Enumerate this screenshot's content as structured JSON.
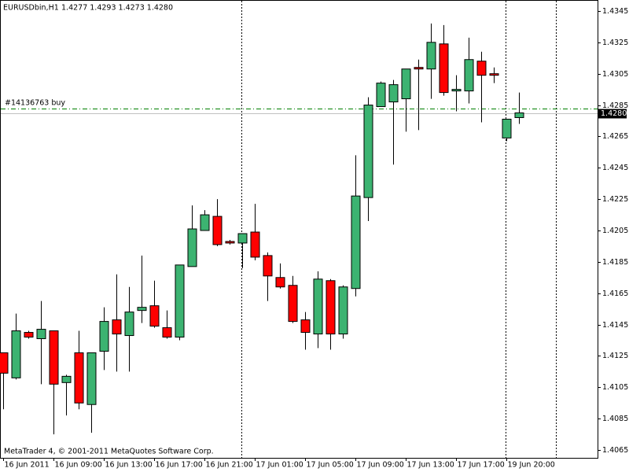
{
  "chart_data": {
    "type": "candlestick",
    "title": "EURUSDbin,H1",
    "ohlc_label": "1.4277 1.4293 1.4273 1.4280",
    "order_label": "#14136763 buy",
    "order_price": 1.4283,
    "bid": {
      "value": 1.428,
      "label": "1.4280"
    },
    "footer": "MetaTrader 4, © 2001-2011 MetaQuotes Software Corp.",
    "up_color": "#3cb371",
    "down_color": "#ff0000",
    "categories": [
      "16 Jun 2011",
      null,
      null,
      null,
      "16 Jun 09:00",
      null,
      null,
      null,
      "16 Jun 13:00",
      null,
      null,
      null,
      "16 Jun 17:00",
      null,
      null,
      null,
      "16 Jun 21:00",
      null,
      null,
      null,
      "17 Jun 01:00",
      null,
      null,
      null,
      "17 Jun 05:00",
      null,
      null,
      null,
      "17 Jun 09:00",
      null,
      null,
      null,
      "17 Jun 13:00",
      null,
      null,
      null,
      "17 Jun 17:00",
      null,
      null,
      null,
      "19 Jun 20:00",
      null
    ],
    "open": [
      1.4127,
      1.4111,
      1.414,
      1.4136,
      1.4141,
      1.4108,
      1.4127,
      1.4094,
      1.4128,
      1.4148,
      1.4138,
      1.4154,
      1.4157,
      1.4143,
      1.4137,
      1.4182,
      1.4205,
      1.4214,
      1.4198,
      1.4197,
      1.4204,
      1.4189,
      1.4175,
      1.417,
      1.4148,
      1.4139,
      1.4173,
      1.4139,
      1.4168,
      1.4226,
      1.4284,
      1.4287,
      1.4289,
      1.4309,
      1.4308,
      1.4324,
      1.4294,
      1.4294,
      1.4313,
      1.4305,
      1.4264,
      1.4277
    ],
    "high": [
      1.4127,
      1.4152,
      1.4141,
      1.416,
      1.4141,
      1.4113,
      1.4141,
      1.4127,
      1.4156,
      1.4177,
      1.4169,
      1.4189,
      1.4173,
      1.4154,
      1.4183,
      1.4221,
      1.4218,
      1.4225,
      1.4199,
      1.4203,
      1.4222,
      1.4191,
      1.4184,
      1.4176,
      1.4153,
      1.4179,
      1.4174,
      1.417,
      1.4253,
      1.429,
      1.43,
      1.4301,
      1.4308,
      1.4314,
      1.4337,
      1.4336,
      1.4304,
      1.4328,
      1.4319,
      1.4309,
      1.4276,
      1.4293
    ],
    "low": [
      1.4091,
      1.411,
      1.4136,
      1.4107,
      1.4075,
      1.4087,
      1.4091,
      1.4076,
      1.4116,
      1.4115,
      1.4115,
      1.4146,
      1.4143,
      1.4136,
      1.4135,
      1.4182,
      1.4205,
      1.4195,
      1.4196,
      1.4181,
      1.4186,
      1.416,
      1.4168,
      1.4146,
      1.4129,
      1.413,
      1.4129,
      1.4136,
      1.4163,
      1.4211,
      1.4284,
      1.4247,
      1.4268,
      1.4269,
      1.4289,
      1.4291,
      1.4281,
      1.4286,
      1.4274,
      1.4299,
      1.4262,
      1.4273
    ],
    "close": [
      1.4114,
      1.4141,
      1.4137,
      1.4142,
      1.4107,
      1.4112,
      1.4095,
      1.4127,
      1.4147,
      1.4139,
      1.4153,
      1.4156,
      1.4144,
      1.4137,
      1.4183,
      1.4206,
      1.4215,
      1.4196,
      1.4197,
      1.4203,
      1.4188,
      1.4176,
      1.4169,
      1.4147,
      1.414,
      1.4174,
      1.4139,
      1.4169,
      1.4227,
      1.4285,
      1.4299,
      1.4298,
      1.4308,
      1.4308,
      1.4325,
      1.4293,
      1.4295,
      1.4314,
      1.4304,
      1.4304,
      1.4276,
      1.428
    ],
    "ylim": [
      1.406,
      1.4352
    ],
    "yticks": [
      1.4345,
      1.4325,
      1.4305,
      1.4285,
      1.4265,
      1.4245,
      1.4225,
      1.4205,
      1.4185,
      1.4165,
      1.4145,
      1.4125,
      1.4105,
      1.4085,
      1.4065
    ]
  }
}
